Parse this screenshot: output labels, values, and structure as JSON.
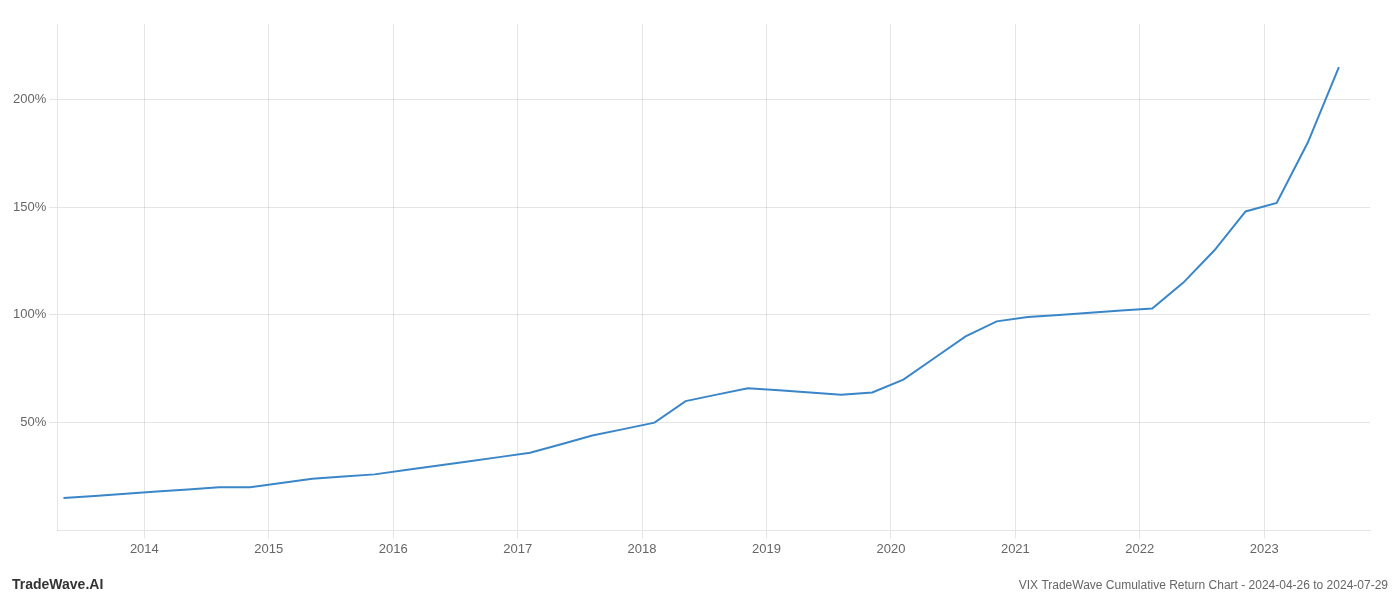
{
  "chart_data": {
    "type": "line",
    "title": "VIX TradeWave Cumulative Return Chart - 2024-04-26 to 2024-07-29",
    "annotations": [
      "TradeWave.AI"
    ],
    "x": [
      2013.35,
      2013.6,
      2013.85,
      2014.1,
      2014.35,
      2014.6,
      2014.85,
      2015.1,
      2015.35,
      2015.6,
      2015.85,
      2016.1,
      2016.35,
      2016.6,
      2016.85,
      2017.1,
      2017.35,
      2017.6,
      2017.85,
      2018.1,
      2018.35,
      2018.6,
      2018.85,
      2019.1,
      2019.35,
      2019.6,
      2019.85,
      2020.1,
      2020.35,
      2020.6,
      2020.85,
      2021.1,
      2021.35,
      2021.6,
      2021.85,
      2022.1,
      2022.35,
      2022.6,
      2022.85,
      2023.1,
      2023.35,
      2023.6
    ],
    "values": [
      15,
      16,
      17,
      18,
      19,
      20,
      20,
      22,
      24,
      25,
      26,
      28,
      30,
      32,
      34,
      36,
      40,
      44,
      47,
      50,
      60,
      63,
      66,
      65,
      64,
      63,
      64,
      70,
      80,
      90,
      97,
      99,
      100,
      101,
      102,
      103,
      115,
      130,
      148,
      152,
      180,
      215
    ],
    "color": "#3a86c8",
    "xlim": [
      2013.3,
      2023.85
    ],
    "ylim": [
      0,
      235
    ],
    "xticks": [
      2014,
      2015,
      2016,
      2017,
      2018,
      2019,
      2020,
      2021,
      2022,
      2023
    ],
    "yticks": [
      {
        "value": 50,
        "label": "50%"
      },
      {
        "value": 100,
        "label": "100%"
      },
      {
        "value": 150,
        "label": "150%"
      },
      {
        "value": 200,
        "label": "200%"
      }
    ],
    "grid": true
  }
}
